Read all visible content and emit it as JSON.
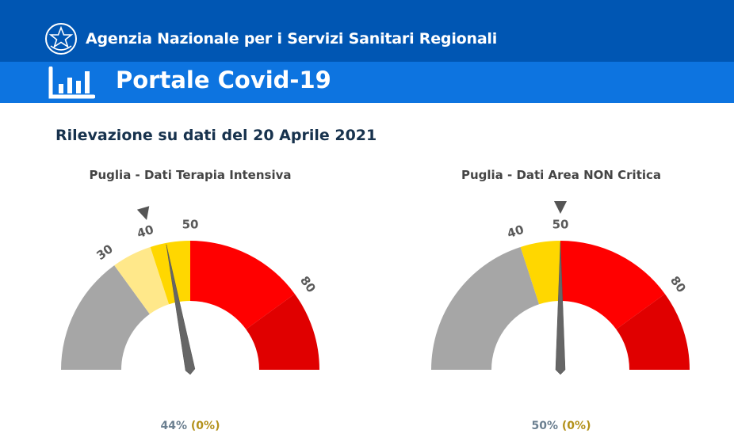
{
  "header": {
    "agency_title": "Agenzia Nazionale per i Servizi Sanitari Regionali",
    "emblem_icon": "italian-republic-emblem-icon",
    "portal_title": "Portale Covid-19",
    "portal_icon": "bar-chart-icon",
    "colors": {
      "top": "#0056b3",
      "sub": "#0d74e0"
    }
  },
  "survey_title": "Rilevazione su dati del 20 Aprile 2021",
  "gauges": [
    {
      "title": "Puglia - Dati Terapia Intensiva",
      "value": 44,
      "target": 41,
      "value_label": "44%",
      "delta_label": "(0%)",
      "bands": [
        {
          "from": 0,
          "to": 30,
          "color": "#a6a6a6"
        },
        {
          "from": 30,
          "to": 40,
          "color": "#ffe88a"
        },
        {
          "from": 40,
          "to": 50,
          "color": "#ffd700"
        },
        {
          "from": 50,
          "to": 80,
          "color": "#ff0000"
        },
        {
          "from": 80,
          "to": 100,
          "color": "#e00000"
        }
      ],
      "ticks": [
        "30",
        "40",
        "50",
        "80"
      ],
      "tick_values": [
        30,
        40,
        50,
        80
      ]
    },
    {
      "title": "Puglia - Dati Area NON Critica",
      "value": 50,
      "target": 50,
      "value_label": "50%",
      "delta_label": "(0%)",
      "bands": [
        {
          "from": 0,
          "to": 40,
          "color": "#a6a6a6"
        },
        {
          "from": 40,
          "to": 50,
          "color": "#ffd700"
        },
        {
          "from": 50,
          "to": 80,
          "color": "#ff0000"
        },
        {
          "from": 80,
          "to": 100,
          "color": "#e00000"
        }
      ],
      "ticks": [
        "40",
        "50",
        "80"
      ],
      "tick_values": [
        40,
        50,
        80
      ]
    }
  ]
}
